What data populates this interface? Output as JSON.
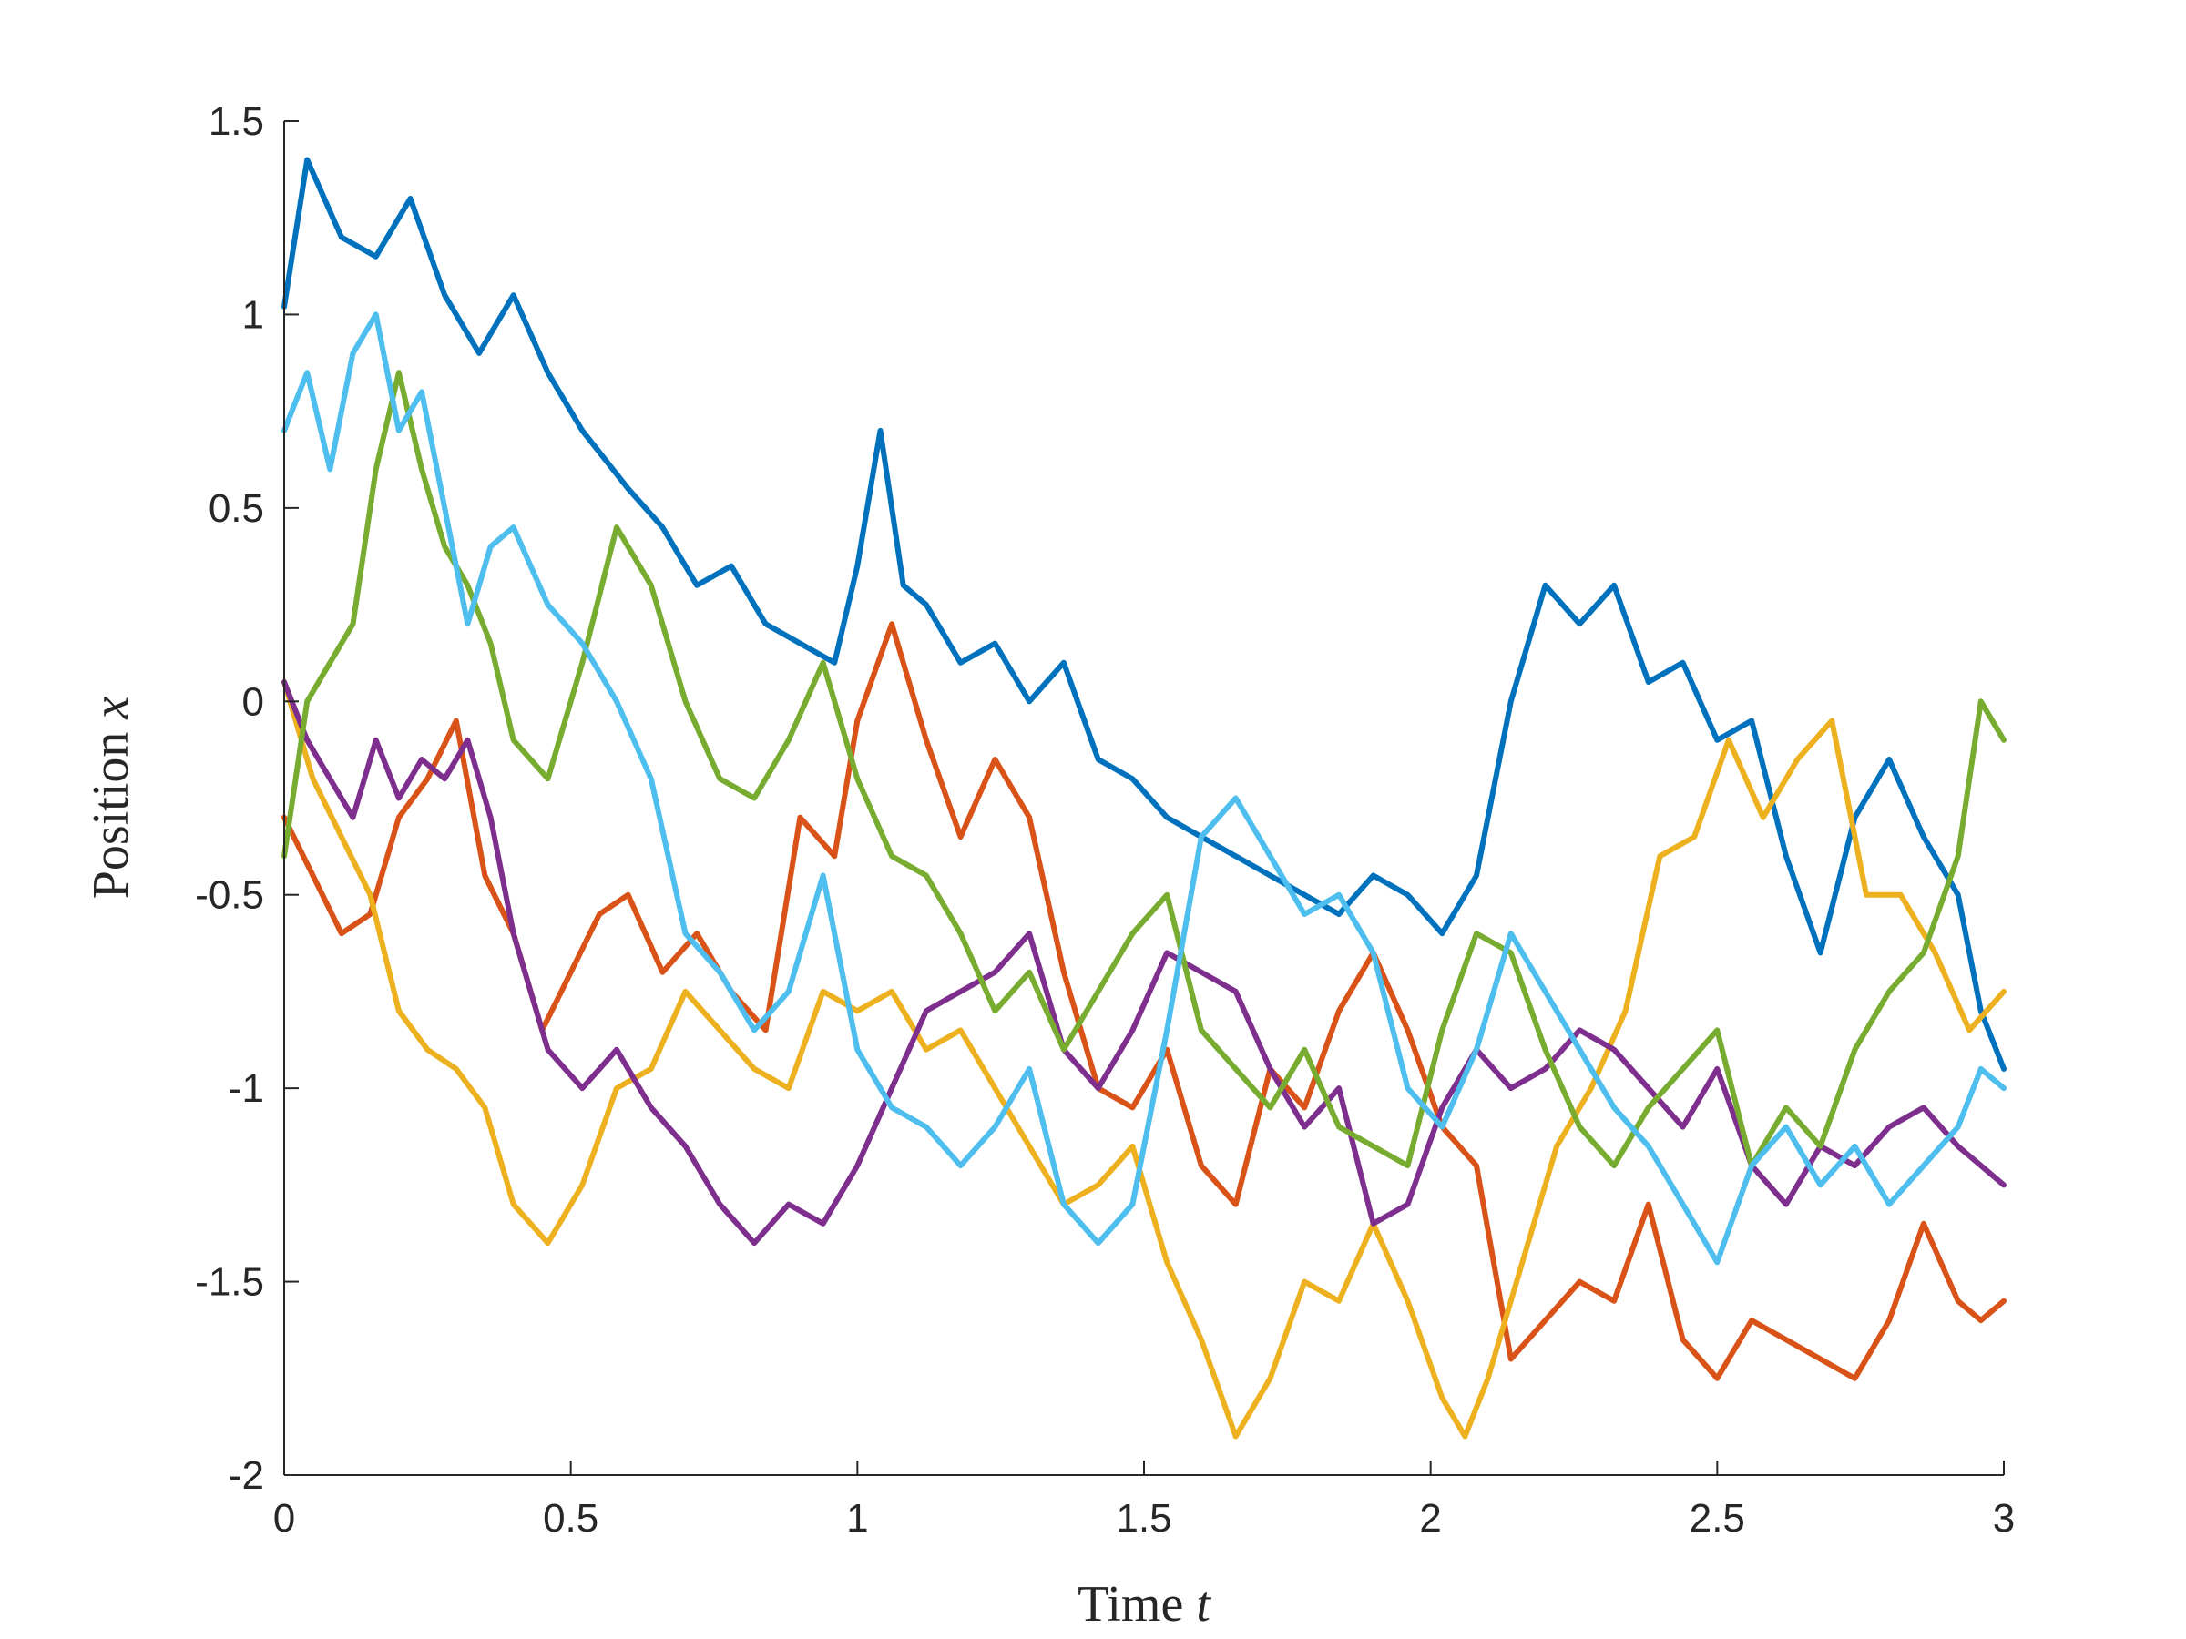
{
  "chart_data": {
    "type": "line",
    "title": "",
    "xlabel": {
      "text": "Time",
      "var": "t"
    },
    "ylabel": {
      "text": "Position",
      "var": "x"
    },
    "xlim": [
      0,
      3
    ],
    "ylim": [
      -2,
      1.5
    ],
    "xticks": [
      0,
      0.5,
      1,
      1.5,
      2,
      2.5,
      3
    ],
    "yticks": [
      -2,
      -1.5,
      -1,
      -0.5,
      0,
      0.5,
      1,
      1.5
    ],
    "xtick_labels": [
      "0",
      "0.5",
      "1",
      "1.5",
      "2",
      "2.5",
      "3"
    ],
    "ytick_labels": [
      "-2",
      "-1.5",
      "-1",
      "-0.5",
      "0",
      "0.5",
      "1",
      "1.5"
    ],
    "grid": false,
    "legend": "none",
    "series": [
      {
        "color": "#0072BD",
        "x": [
          0,
          0.04,
          0.1,
          0.16,
          0.22,
          0.28,
          0.34,
          0.4,
          0.46,
          0.52,
          0.6,
          0.66,
          0.72,
          0.78,
          0.84,
          0.9,
          0.96,
          1.0,
          1.04,
          1.08,
          1.12,
          1.18,
          1.24,
          1.3,
          1.36,
          1.42,
          1.48,
          1.54,
          1.6,
          1.66,
          1.72,
          1.78,
          1.84,
          1.9,
          1.96,
          2.02,
          2.08,
          2.14,
          2.2,
          2.26,
          2.32,
          2.38,
          2.44,
          2.5,
          2.56,
          2.62,
          2.68,
          2.74,
          2.8,
          2.86,
          2.92,
          2.96,
          3.0
        ],
        "y": [
          1.02,
          1.4,
          1.2,
          1.15,
          1.3,
          1.05,
          0.9,
          1.05,
          0.85,
          0.7,
          0.55,
          0.45,
          0.3,
          0.35,
          0.2,
          0.15,
          0.1,
          0.35,
          0.7,
          0.3,
          0.25,
          0.1,
          0.15,
          0.0,
          0.1,
          -0.15,
          -0.2,
          -0.3,
          -0.35,
          -0.4,
          -0.45,
          -0.5,
          -0.55,
          -0.45,
          -0.5,
          -0.6,
          -0.45,
          0.0,
          0.3,
          0.2,
          0.3,
          0.05,
          0.1,
          -0.1,
          -0.05,
          -0.4,
          -0.65,
          -0.3,
          -0.15,
          -0.35,
          -0.5,
          -0.8,
          -0.95
        ]
      },
      {
        "color": "#D95319",
        "x": [
          0,
          0.05,
          0.1,
          0.15,
          0.2,
          0.25,
          0.3,
          0.35,
          0.4,
          0.45,
          0.5,
          0.55,
          0.6,
          0.66,
          0.72,
          0.78,
          0.84,
          0.9,
          0.96,
          1.0,
          1.06,
          1.12,
          1.18,
          1.24,
          1.3,
          1.36,
          1.42,
          1.48,
          1.54,
          1.6,
          1.66,
          1.72,
          1.78,
          1.84,
          1.9,
          1.96,
          2.02,
          2.08,
          2.14,
          2.2,
          2.26,
          2.32,
          2.38,
          2.44,
          2.5,
          2.56,
          2.62,
          2.68,
          2.74,
          2.8,
          2.86,
          2.92,
          2.96,
          3.0
        ],
        "y": [
          -0.3,
          -0.45,
          -0.6,
          -0.55,
          -0.3,
          -0.2,
          -0.05,
          -0.45,
          -0.6,
          -0.85,
          -0.7,
          -0.55,
          -0.5,
          -0.7,
          -0.6,
          -0.75,
          -0.85,
          -0.3,
          -0.4,
          -0.05,
          0.2,
          -0.1,
          -0.35,
          -0.15,
          -0.3,
          -0.7,
          -1.0,
          -1.05,
          -0.9,
          -1.2,
          -1.3,
          -0.95,
          -1.05,
          -0.8,
          -0.65,
          -0.85,
          -1.1,
          -1.2,
          -1.7,
          -1.6,
          -1.5,
          -1.55,
          -1.3,
          -1.65,
          -1.75,
          -1.6,
          -1.65,
          -1.7,
          -1.75,
          -1.6,
          -1.35,
          -1.55,
          -1.6,
          -1.55
        ]
      },
      {
        "color": "#EDB120",
        "x": [
          0,
          0.05,
          0.1,
          0.15,
          0.2,
          0.25,
          0.3,
          0.35,
          0.4,
          0.46,
          0.52,
          0.58,
          0.64,
          0.7,
          0.76,
          0.82,
          0.88,
          0.94,
          1.0,
          1.06,
          1.12,
          1.18,
          1.24,
          1.3,
          1.36,
          1.42,
          1.48,
          1.54,
          1.6,
          1.66,
          1.72,
          1.78,
          1.84,
          1.9,
          1.96,
          2.02,
          2.06,
          2.1,
          2.16,
          2.22,
          2.28,
          2.34,
          2.4,
          2.46,
          2.52,
          2.58,
          2.64,
          2.7,
          2.76,
          2.82,
          2.88,
          2.94,
          3.0
        ],
        "y": [
          0.05,
          -0.2,
          -0.35,
          -0.5,
          -0.8,
          -0.9,
          -0.95,
          -1.05,
          -1.3,
          -1.4,
          -1.25,
          -1.0,
          -0.95,
          -0.75,
          -0.85,
          -0.95,
          -1.0,
          -0.75,
          -0.8,
          -0.75,
          -0.9,
          -0.85,
          -1.0,
          -1.15,
          -1.3,
          -1.25,
          -1.15,
          -1.45,
          -1.65,
          -1.9,
          -1.75,
          -1.5,
          -1.55,
          -1.35,
          -1.55,
          -1.8,
          -1.9,
          -1.75,
          -1.45,
          -1.15,
          -1.0,
          -0.8,
          -0.4,
          -0.35,
          -0.1,
          -0.3,
          -0.15,
          -0.05,
          -0.5,
          -0.5,
          -0.65,
          -0.85,
          -0.75
        ]
      },
      {
        "color": "#7E2F8E",
        "x": [
          0,
          0.04,
          0.08,
          0.12,
          0.16,
          0.2,
          0.24,
          0.28,
          0.32,
          0.36,
          0.4,
          0.46,
          0.52,
          0.58,
          0.64,
          0.7,
          0.76,
          0.82,
          0.88,
          0.94,
          1.0,
          1.06,
          1.12,
          1.18,
          1.24,
          1.3,
          1.36,
          1.42,
          1.48,
          1.54,
          1.6,
          1.66,
          1.72,
          1.78,
          1.84,
          1.9,
          1.96,
          2.02,
          2.08,
          2.14,
          2.2,
          2.26,
          2.32,
          2.38,
          2.44,
          2.5,
          2.56,
          2.62,
          2.68,
          2.74,
          2.8,
          2.86,
          2.92,
          2.96,
          3.0
        ],
        "y": [
          0.05,
          -0.1,
          -0.2,
          -0.3,
          -0.1,
          -0.25,
          -0.15,
          -0.2,
          -0.1,
          -0.3,
          -0.6,
          -0.9,
          -1.0,
          -0.9,
          -1.05,
          -1.15,
          -1.3,
          -1.4,
          -1.3,
          -1.35,
          -1.2,
          -1.0,
          -0.8,
          -0.75,
          -0.7,
          -0.6,
          -0.9,
          -1.0,
          -0.85,
          -0.65,
          -0.7,
          -0.75,
          -0.95,
          -1.1,
          -1.0,
          -1.35,
          -1.3,
          -1.05,
          -0.9,
          -1.0,
          -0.95,
          -0.85,
          -0.9,
          -1.0,
          -1.1,
          -0.95,
          -1.2,
          -1.3,
          -1.15,
          -1.2,
          -1.1,
          -1.05,
          -1.15,
          -1.2,
          -1.25
        ]
      },
      {
        "color": "#77AC30",
        "x": [
          0,
          0.04,
          0.08,
          0.12,
          0.16,
          0.2,
          0.24,
          0.28,
          0.32,
          0.36,
          0.4,
          0.46,
          0.52,
          0.58,
          0.64,
          0.7,
          0.76,
          0.82,
          0.88,
          0.94,
          1.0,
          1.06,
          1.12,
          1.18,
          1.24,
          1.3,
          1.36,
          1.42,
          1.48,
          1.54,
          1.6,
          1.66,
          1.72,
          1.78,
          1.84,
          1.9,
          1.96,
          2.02,
          2.08,
          2.14,
          2.2,
          2.26,
          2.32,
          2.38,
          2.44,
          2.5,
          2.56,
          2.62,
          2.68,
          2.74,
          2.8,
          2.86,
          2.92,
          2.96,
          3.0
        ],
        "y": [
          -0.4,
          0.0,
          0.1,
          0.2,
          0.6,
          0.85,
          0.6,
          0.4,
          0.3,
          0.15,
          -0.1,
          -0.2,
          0.1,
          0.45,
          0.3,
          0.0,
          -0.2,
          -0.25,
          -0.1,
          0.1,
          -0.2,
          -0.4,
          -0.45,
          -0.6,
          -0.8,
          -0.7,
          -0.9,
          -0.75,
          -0.6,
          -0.5,
          -0.85,
          -0.95,
          -1.05,
          -0.9,
          -1.1,
          -1.15,
          -1.2,
          -0.85,
          -0.6,
          -0.65,
          -0.9,
          -1.1,
          -1.2,
          -1.05,
          -0.95,
          -0.85,
          -1.2,
          -1.05,
          -1.15,
          -0.9,
          -0.75,
          -0.65,
          -0.4,
          0.0,
          -0.1
        ]
      },
      {
        "color": "#4DBEEE",
        "x": [
          0,
          0.04,
          0.08,
          0.12,
          0.16,
          0.2,
          0.24,
          0.28,
          0.32,
          0.36,
          0.4,
          0.46,
          0.52,
          0.58,
          0.64,
          0.7,
          0.76,
          0.82,
          0.88,
          0.94,
          1.0,
          1.06,
          1.12,
          1.18,
          1.24,
          1.3,
          1.36,
          1.42,
          1.48,
          1.54,
          1.6,
          1.66,
          1.72,
          1.78,
          1.84,
          1.9,
          1.96,
          2.02,
          2.08,
          2.14,
          2.2,
          2.26,
          2.32,
          2.38,
          2.44,
          2.5,
          2.56,
          2.62,
          2.68,
          2.74,
          2.8,
          2.86,
          2.92,
          2.96,
          3.0
        ],
        "y": [
          0.7,
          0.85,
          0.6,
          0.9,
          1.0,
          0.7,
          0.8,
          0.5,
          0.2,
          0.4,
          0.45,
          0.25,
          0.15,
          0.0,
          -0.2,
          -0.6,
          -0.7,
          -0.85,
          -0.75,
          -0.45,
          -0.9,
          -1.05,
          -1.1,
          -1.2,
          -1.1,
          -0.95,
          -1.3,
          -1.4,
          -1.3,
          -0.85,
          -0.35,
          -0.25,
          -0.4,
          -0.55,
          -0.5,
          -0.65,
          -1.0,
          -1.1,
          -0.9,
          -0.6,
          -0.75,
          -0.9,
          -1.05,
          -1.15,
          -1.3,
          -1.45,
          -1.2,
          -1.1,
          -1.25,
          -1.15,
          -1.3,
          -1.2,
          -1.1,
          -0.95,
          -1.0
        ]
      }
    ]
  }
}
